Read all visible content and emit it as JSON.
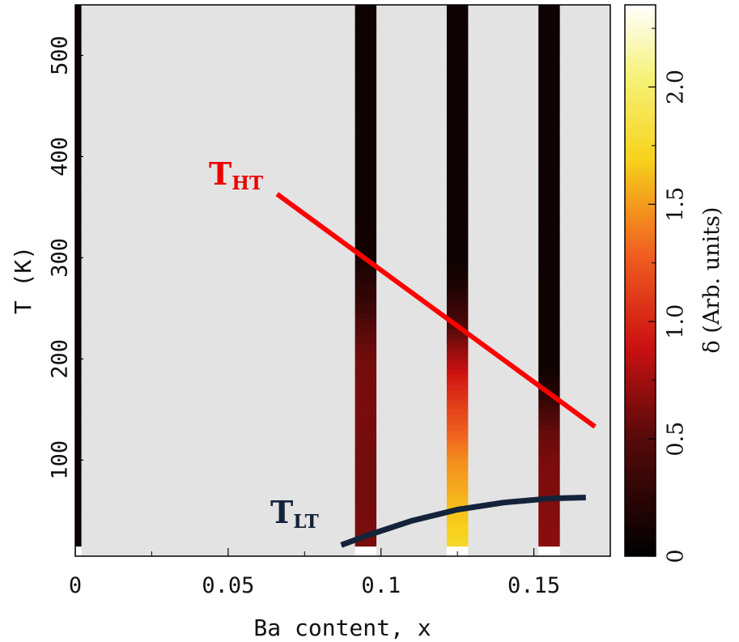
{
  "chart_data": {
    "type": "heatmap",
    "xlabel": "Ba content, x",
    "ylabel": "T (K)",
    "colorbar_label": "δ  (Arb. units)",
    "xlim": [
      0,
      0.175
    ],
    "ylim": [
      5,
      550
    ],
    "x_ticks": [
      0,
      0.05,
      0.1,
      0.15
    ],
    "x_tick_labels": [
      "0",
      "0.05",
      "0.1",
      "0.15"
    ],
    "y_ticks": [
      100,
      200,
      300,
      400,
      500
    ],
    "y_tick_labels": [
      "100",
      "200",
      "300",
      "400",
      "500"
    ],
    "colorbar_range": [
      0,
      2.35
    ],
    "colorbar_ticks": [
      0,
      0.5,
      1.0,
      1.5,
      2.0
    ],
    "colorbar_tick_labels": [
      "0",
      "0.5",
      "1.0",
      "1.5",
      "2.0"
    ],
    "background_color": "#e3e3e3",
    "columns": [
      {
        "x": 0.0,
        "width": 0.004,
        "profile": [
          [
            15,
            0.08
          ],
          [
            550,
            0.08
          ]
        ]
      },
      {
        "x": 0.095,
        "width": 0.007,
        "profile": [
          [
            15,
            0.62
          ],
          [
            40,
            0.62
          ],
          [
            60,
            0.6
          ],
          [
            100,
            0.6
          ],
          [
            150,
            0.62
          ],
          [
            200,
            0.6
          ],
          [
            230,
            0.5
          ],
          [
            250,
            0.35
          ],
          [
            280,
            0.22
          ],
          [
            300,
            0.12
          ],
          [
            350,
            0.08
          ],
          [
            550,
            0.08
          ]
        ]
      },
      {
        "x": 0.125,
        "width": 0.007,
        "profile": [
          [
            15,
            1.75
          ],
          [
            60,
            1.6
          ],
          [
            100,
            1.45
          ],
          [
            150,
            1.15
          ],
          [
            180,
            0.95
          ],
          [
            210,
            0.7
          ],
          [
            240,
            0.4
          ],
          [
            270,
            0.18
          ],
          [
            300,
            0.08
          ],
          [
            550,
            0.08
          ]
        ]
      },
      {
        "x": 0.155,
        "width": 0.007,
        "profile": [
          [
            15,
            0.68
          ],
          [
            60,
            0.65
          ],
          [
            100,
            0.62
          ],
          [
            130,
            0.55
          ],
          [
            150,
            0.4
          ],
          [
            170,
            0.2
          ],
          [
            190,
            0.1
          ],
          [
            550,
            0.08
          ]
        ]
      }
    ],
    "series": [
      {
        "name": "T_HT",
        "label_main": "T",
        "label_sub": "HT",
        "color": "#ff0000",
        "x": [
          0.066,
          0.17
        ],
        "y": [
          363,
          133
        ]
      },
      {
        "name": "T_LT",
        "label_main": "T",
        "label_sub": "LT",
        "color": "#14233a",
        "x": [
          0.087,
          0.095,
          0.11,
          0.125,
          0.14,
          0.155,
          0.167
        ],
        "y": [
          16,
          25,
          40,
          51,
          58,
          62,
          63
        ]
      }
    ]
  }
}
